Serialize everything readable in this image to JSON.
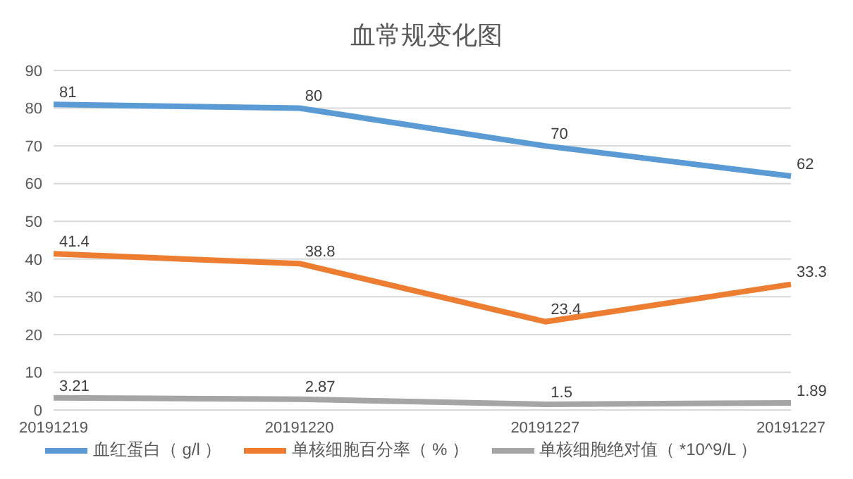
{
  "chart_data": {
    "type": "line",
    "title": "血常规变化图",
    "categories": [
      "20191219",
      "20191220",
      "20191227",
      "20191227"
    ],
    "series": [
      {
        "name": "血红蛋白（ g/l ）",
        "color": "#5b9bd5",
        "values": [
          81,
          80,
          70,
          62
        ]
      },
      {
        "name": "单核细胞百分率（ % ）",
        "color": "#ed7d31",
        "values": [
          41.4,
          38.8,
          23.4,
          33.3
        ]
      },
      {
        "name": "单核细胞绝对值（ *10^9/L ）",
        "color": "#a5a5a5",
        "values": [
          3.21,
          2.87,
          1.5,
          1.89
        ]
      }
    ],
    "ylim": [
      0,
      90
    ],
    "yticks": [
      0,
      10,
      20,
      30,
      40,
      50,
      60,
      70,
      80,
      90
    ],
    "grid": "y",
    "legend": "bottom",
    "data_labels": true,
    "marker": "none",
    "line_style": "solid"
  }
}
